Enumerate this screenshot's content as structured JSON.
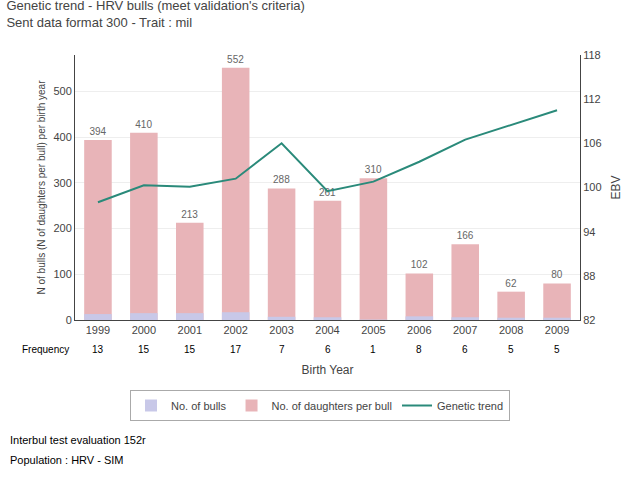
{
  "chart_data": {
    "type": "bar",
    "title": "Genetic trend - HRV bulls (meet validation's criteria)",
    "subtitle": "Sent data format 300 - Trait : mil",
    "categories": [
      1999,
      2000,
      2001,
      2002,
      2003,
      2004,
      2005,
      2006,
      2007,
      2008,
      2009
    ],
    "series": [
      {
        "name": "No. of bulls",
        "color": "#c8c8e8",
        "values": [
          13,
          15,
          15,
          17,
          7,
          6,
          1,
          8,
          6,
          5,
          5
        ]
      },
      {
        "name": "No. of daughters per bull",
        "color": "#e8b4b8",
        "values": [
          394,
          410,
          213,
          552,
          288,
          261,
          310,
          102,
          166,
          62,
          80
        ],
        "data_labels": true
      },
      {
        "name": "Genetic trend",
        "type": "line",
        "color": "#2a8a7a",
        "axis": "y2",
        "values": [
          98.0,
          100.3,
          100.1,
          101.2,
          106.0,
          99.5,
          100.8,
          103.5,
          106.5,
          108.5,
          110.5
        ]
      }
    ],
    "frequency_label": "Frequency",
    "frequency": [
      13,
      15,
      15,
      17,
      7,
      6,
      1,
      8,
      6,
      5,
      5
    ],
    "xlabel": "Birth Year",
    "ylabel": "N of bulls (N of daughters per bull) per birth year",
    "y2label": "EBV",
    "ylim": [
      0,
      580
    ],
    "yticks": [
      0,
      100,
      200,
      300,
      400,
      500
    ],
    "y2lim": [
      82,
      118
    ],
    "y2ticks": [
      82,
      88,
      94,
      100,
      106,
      112,
      118
    ],
    "grid": true,
    "legend": "bottom",
    "annotations": [
      "Interbul test evaluation 152r",
      "Population : HRV - SIM"
    ]
  }
}
